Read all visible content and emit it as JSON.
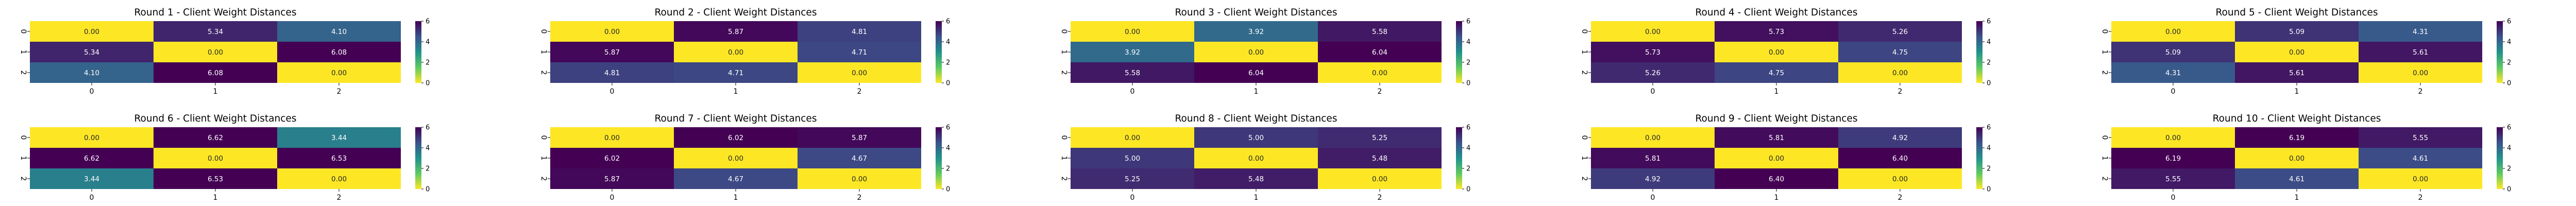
{
  "chart_data": [
    {
      "type": "heatmap",
      "title": "Round 1 - Client Weight Distances",
      "x_labels": [
        "0",
        "1",
        "2"
      ],
      "y_labels": [
        "0",
        "1",
        "2"
      ],
      "values": [
        [
          0.0,
          5.34,
          4.1
        ],
        [
          5.34,
          0.0,
          6.08
        ],
        [
          4.1,
          6.08,
          0.0
        ]
      ],
      "colorbar": {
        "range": [
          0,
          6
        ],
        "ticks": [
          "0",
          "2",
          "4",
          "6"
        ],
        "colormap": "viridis_r"
      }
    },
    {
      "type": "heatmap",
      "title": "Round 2 - Client Weight Distances",
      "x_labels": [
        "0",
        "1",
        "2"
      ],
      "y_labels": [
        "0",
        "1",
        "2"
      ],
      "values": [
        [
          0.0,
          5.87,
          4.81
        ],
        [
          5.87,
          0.0,
          4.71
        ],
        [
          4.81,
          4.71,
          0.0
        ]
      ],
      "colorbar": {
        "range": [
          0,
          6
        ],
        "ticks": [
          "0",
          "2",
          "4",
          "6"
        ],
        "colormap": "viridis_r"
      }
    },
    {
      "type": "heatmap",
      "title": "Round 3 - Client Weight Distances",
      "x_labels": [
        "0",
        "1",
        "2"
      ],
      "y_labels": [
        "0",
        "1",
        "2"
      ],
      "values": [
        [
          0.0,
          3.92,
          5.58
        ],
        [
          3.92,
          0.0,
          6.04
        ],
        [
          5.58,
          6.04,
          0.0
        ]
      ],
      "colorbar": {
        "range": [
          0,
          6
        ],
        "ticks": [
          "0",
          "2",
          "4",
          "6"
        ],
        "colormap": "viridis_r"
      }
    },
    {
      "type": "heatmap",
      "title": "Round 4 - Client Weight Distances",
      "x_labels": [
        "0",
        "1",
        "2"
      ],
      "y_labels": [
        "0",
        "1",
        "2"
      ],
      "values": [
        [
          0.0,
          5.73,
          5.26
        ],
        [
          5.73,
          0.0,
          4.75
        ],
        [
          5.26,
          4.75,
          0.0
        ]
      ],
      "colorbar": {
        "range": [
          0,
          6
        ],
        "ticks": [
          "0",
          "2",
          "4",
          "6"
        ],
        "colormap": "viridis_r"
      }
    },
    {
      "type": "heatmap",
      "title": "Round 5 - Client Weight Distances",
      "x_labels": [
        "0",
        "1",
        "2"
      ],
      "y_labels": [
        "0",
        "1",
        "2"
      ],
      "values": [
        [
          0.0,
          5.09,
          4.31
        ],
        [
          5.09,
          0.0,
          5.61
        ],
        [
          4.31,
          5.61,
          0.0
        ]
      ],
      "colorbar": {
        "range": [
          0,
          6
        ],
        "ticks": [
          "0",
          "2",
          "4",
          "6"
        ],
        "colormap": "viridis_r"
      }
    },
    {
      "type": "heatmap",
      "title": "Round 6 - Client Weight Distances",
      "x_labels": [
        "0",
        "1",
        "2"
      ],
      "y_labels": [
        "0",
        "1",
        "2"
      ],
      "values": [
        [
          0.0,
          6.62,
          3.44
        ],
        [
          6.62,
          0.0,
          6.53
        ],
        [
          3.44,
          6.53,
          0.0
        ]
      ],
      "colorbar": {
        "range": [
          0,
          6
        ],
        "ticks": [
          "0",
          "2",
          "4",
          "6"
        ],
        "colormap": "viridis_r"
      }
    },
    {
      "type": "heatmap",
      "title": "Round 7 - Client Weight Distances",
      "x_labels": [
        "0",
        "1",
        "2"
      ],
      "y_labels": [
        "0",
        "1",
        "2"
      ],
      "values": [
        [
          0.0,
          6.02,
          5.87
        ],
        [
          6.02,
          0.0,
          4.67
        ],
        [
          5.87,
          4.67,
          0.0
        ]
      ],
      "colorbar": {
        "range": [
          0,
          6
        ],
        "ticks": [
          "0",
          "2",
          "4",
          "6"
        ],
        "colormap": "viridis_r"
      }
    },
    {
      "type": "heatmap",
      "title": "Round 8 - Client Weight Distances",
      "x_labels": [
        "0",
        "1",
        "2"
      ],
      "y_labels": [
        "0",
        "1",
        "2"
      ],
      "values": [
        [
          0.0,
          5.0,
          5.25
        ],
        [
          5.0,
          0.0,
          5.48
        ],
        [
          5.25,
          5.48,
          0.0
        ]
      ],
      "colorbar": {
        "range": [
          0,
          6
        ],
        "ticks": [
          "0",
          "2",
          "4",
          "6"
        ],
        "colormap": "viridis_r"
      }
    },
    {
      "type": "heatmap",
      "title": "Round 9 - Client Weight Distances",
      "x_labels": [
        "0",
        "1",
        "2"
      ],
      "y_labels": [
        "0",
        "1",
        "2"
      ],
      "values": [
        [
          0.0,
          5.81,
          4.92
        ],
        [
          5.81,
          0.0,
          6.4
        ],
        [
          4.92,
          6.4,
          0.0
        ]
      ],
      "colorbar": {
        "range": [
          0,
          6
        ],
        "ticks": [
          "0",
          "2",
          "4",
          "6"
        ],
        "colormap": "viridis_r"
      }
    },
    {
      "type": "heatmap",
      "title": "Round 10 - Client Weight Distances",
      "x_labels": [
        "0",
        "1",
        "2"
      ],
      "y_labels": [
        "0",
        "1",
        "2"
      ],
      "values": [
        [
          0.0,
          6.19,
          5.55
        ],
        [
          6.19,
          0.0,
          4.61
        ],
        [
          5.55,
          4.61,
          0.0
        ]
      ],
      "colorbar": {
        "range": [
          0,
          6
        ],
        "ticks": [
          "0",
          "2",
          "4",
          "6"
        ],
        "colormap": "viridis_r"
      }
    }
  ]
}
